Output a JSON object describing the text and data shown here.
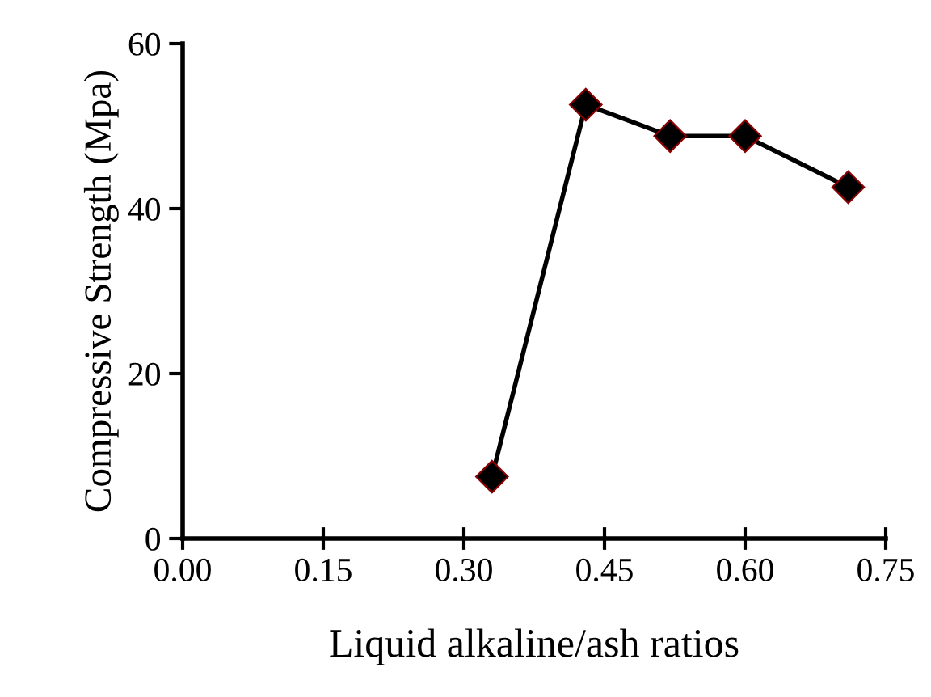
{
  "chart_data": {
    "type": "line",
    "xlabel": "Liquid alkaline/ash ratios",
    "ylabel": "Compressive Strength (Mpa)",
    "x": [
      0.33,
      0.43,
      0.52,
      0.6,
      0.71
    ],
    "series": [
      {
        "color": "#000000",
        "values": [
          7.5,
          52.6,
          48.8,
          48.8,
          42.6
        ]
      }
    ],
    "xlim": [
      0,
      0.75
    ],
    "xticks": [
      {
        "value": 0,
        "label": "0.00"
      },
      {
        "value": 0.15,
        "label": "0.15"
      },
      {
        "value": 0.3,
        "label": "0.30"
      },
      {
        "value": 0.45,
        "label": "0.45"
      },
      {
        "value": 0.6,
        "label": "0.60"
      },
      {
        "value": 0.75,
        "label": "0.75"
      }
    ],
    "ylim": [
      0,
      60
    ],
    "yticks": [
      0,
      20,
      40,
      60
    ],
    "marker": "diamond",
    "line_style": "solid",
    "grid": false,
    "legend": false
  }
}
